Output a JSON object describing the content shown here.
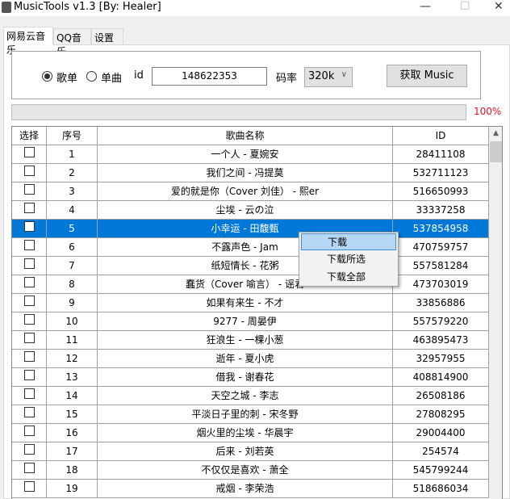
{
  "window": {
    "title": "MusicTools v1.3 [By:  Healer]",
    "minimize": "—",
    "maximize": "☐",
    "close": "✕"
  },
  "tabs": [
    {
      "label": "网易云音乐",
      "active": true
    },
    {
      "label": "QQ音乐"
    },
    {
      "label": "设置"
    }
  ],
  "form": {
    "radio_playlist": "歌单",
    "radio_single": "单曲",
    "selected": "歌单",
    "id_label": "id",
    "id_value": "148622353",
    "bitrate_label": "码率",
    "bitrate_value": "320k",
    "fetch_button": "获取 Music"
  },
  "progress": {
    "value": 100,
    "label": "100%",
    "text_color": "#e81123"
  },
  "table": {
    "headers": [
      "选择",
      "序号",
      "歌曲名称",
      "ID"
    ],
    "rows": [
      {
        "no": "1",
        "name": "一个人 - 夏婉安",
        "id": "28411108"
      },
      {
        "no": "2",
        "name": "我们之间 - 冯提莫",
        "id": "532711123"
      },
      {
        "no": "3",
        "name": "爱的就是你（Cover 刘佳） - 熙er",
        "id": "516650993"
      },
      {
        "no": "4",
        "name": "尘埃 - 云の泣",
        "id": "33337258"
      },
      {
        "no": "5",
        "name": "小幸运 - 田馥甄",
        "id": "537854958",
        "selected": true
      },
      {
        "no": "6",
        "name": "不露声色 - Jam",
        "id": "470759757"
      },
      {
        "no": "7",
        "name": "纸短情长 - 花粥",
        "id": "557581284"
      },
      {
        "no": "8",
        "name": "蠢货（Cover 喻言） - 谣君",
        "id": "473703019"
      },
      {
        "no": "9",
        "name": "如果有来生 - 不才",
        "id": "33856886"
      },
      {
        "no": "10",
        "name": "9277 - 周晏伊",
        "id": "557579220"
      },
      {
        "no": "11",
        "name": "狂浪生 - 一棵小葱",
        "id": "463895473"
      },
      {
        "no": "12",
        "name": "逝年 - 夏小虎",
        "id": "32957955"
      },
      {
        "no": "13",
        "name": "借我 - 谢春花",
        "id": "408814900"
      },
      {
        "no": "14",
        "name": "天空之城 - 李志",
        "id": "26508186"
      },
      {
        "no": "15",
        "name": "平淡日子里的刺 - 宋冬野",
        "id": "27808295"
      },
      {
        "no": "16",
        "name": "烟火里的尘埃 - 华晨宇",
        "id": "29004400"
      },
      {
        "no": "17",
        "name": "后来 - 刘若英",
        "id": "254574"
      },
      {
        "no": "18",
        "name": "不仅仅是喜欢 - 萧全",
        "id": "545799244"
      },
      {
        "no": "19",
        "name": "戒烟 - 李荣浩",
        "id": "518686034"
      }
    ]
  },
  "context_menu": {
    "items": [
      "下载",
      "下载所选",
      "下载全部"
    ],
    "highlighted": "下载"
  },
  "colors": {
    "selection": "#0078d7",
    "menu_highlight": "#b5d7f3"
  }
}
